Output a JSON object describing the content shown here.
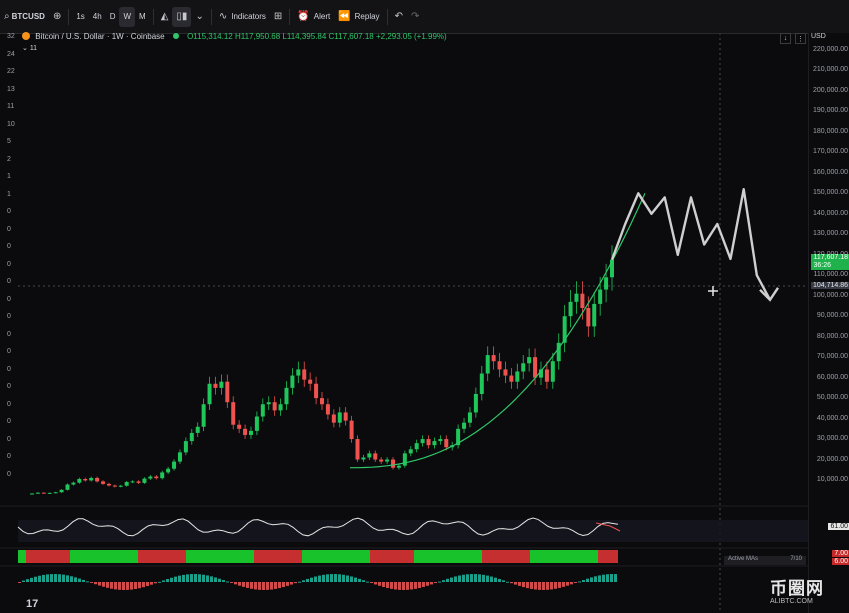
{
  "toolbar": {
    "symbol": "BTCUSD",
    "timeframes": [
      "1s",
      "4h",
      "D",
      "W",
      "M"
    ],
    "active_timeframe": "W",
    "indicators_label": "Indicators",
    "alert_label": "Alert",
    "replay_label": "Replay"
  },
  "legend": {
    "name": "Bitcoin / U.S. Dollar · 1W · Coinbase",
    "ohlc": "O115,314.12 H117,950.68 L114,395.84 C117,607.18 +2,293.05 (+1.99%)",
    "indicator_count": "11"
  },
  "axis": {
    "currency": "USD",
    "price_labels": [
      "220,000.00",
      "210,000.00",
      "200,000.00",
      "190,000.00",
      "180,000.00",
      "170,000.00",
      "160,000.00",
      "150,000.00",
      "140,000.00",
      "130,000.00",
      "120,000.00",
      "110,000.00",
      "100,000.00",
      "90,000.00",
      "80,000.00",
      "70,000.00",
      "60,000.00",
      "50,000.00",
      "40,000.00",
      "30,000.00",
      "20,000.00",
      "10,000.00"
    ],
    "current_price": "117,607.18",
    "current_sub": "36:26",
    "crosshair_price": "104,714.86",
    "left_labels": [
      "32",
      "24",
      "22",
      "13",
      "11",
      "10",
      "5",
      "2",
      "1",
      "1",
      "0",
      "0",
      "0",
      "0",
      "0",
      "0",
      "0",
      "0",
      "0",
      "0",
      "0",
      "0",
      "0",
      "0",
      "0",
      "0"
    ]
  },
  "panes": {
    "rsi_value": "61.00",
    "ma_value_1": "7.00",
    "ma_value_2": "6.00",
    "active_mas_label": "Active MAs",
    "active_mas_count": "7/10"
  },
  "colors": {
    "up": "#26a69a",
    "up_bright": "#1fc75a",
    "down": "#ef5350",
    "accent_green": "#2fc76a",
    "projection": "#cfcfcf",
    "background": "#0b0b0d"
  },
  "logo": "17",
  "watermark": {
    "title": "币圈网",
    "subtitle": "ALIBTC.COM"
  },
  "chart_data": {
    "type": "candlestick",
    "symbol": "BTCUSD",
    "timeframe": "1W",
    "ylim": [
      0,
      230000
    ],
    "candles_close_approx": [
      3400,
      3800,
      3600,
      3700,
      4000,
      5200,
      7800,
      8700,
      10500,
      9800,
      11000,
      9300,
      8100,
      7300,
      6800,
      7200,
      9000,
      9300,
      8600,
      10700,
      11700,
      10900,
      13700,
      15500,
      19000,
      23500,
      29000,
      33000,
      36000,
      47000,
      57000,
      55000,
      58000,
      48000,
      37000,
      35000,
      32000,
      34000,
      41000,
      47000,
      48000,
      44000,
      47000,
      55000,
      61000,
      64000,
      59000,
      57000,
      50000,
      47000,
      42000,
      38000,
      43000,
      39000,
      30000,
      20000,
      21000,
      23000,
      20000,
      19000,
      20000,
      16000,
      17000,
      23000,
      25000,
      28000,
      30000,
      27000,
      29000,
      30000,
      26000,
      27000,
      35000,
      38000,
      43000,
      52000,
      62000,
      71000,
      68000,
      64000,
      61000,
      58000,
      63000,
      67000,
      70000,
      60000,
      64000,
      58000,
      68000,
      77000,
      90000,
      97000,
      101000,
      94000,
      85000,
      96000,
      103000,
      109000,
      117607
    ],
    "projection": [
      117607,
      135000,
      150000,
      140000,
      148000,
      120000,
      148000,
      125000,
      135000,
      118000,
      152000,
      110000,
      98000
    ],
    "trend_curve": "green parabolic support curve",
    "current_price": 117607.18,
    "crosshair_price": 104714.86
  }
}
